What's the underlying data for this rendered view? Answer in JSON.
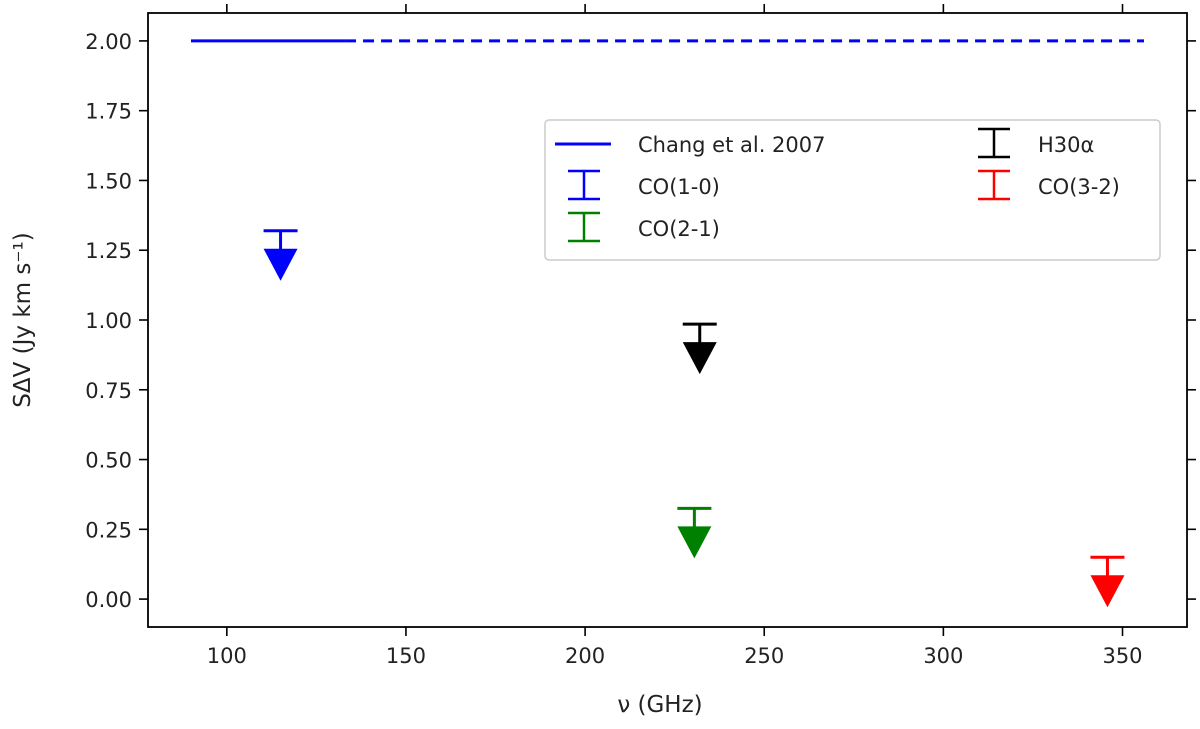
{
  "chart_data": {
    "type": "scatter",
    "title": "",
    "xlabel": "ν (GHz)",
    "ylabel": "SΔV (Jy km s⁻¹)",
    "xlim": [
      78,
      368
    ],
    "ylim": [
      -0.1,
      2.1
    ],
    "x_ticks": [
      100,
      150,
      200,
      250,
      300,
      350
    ],
    "y_ticks": [
      0.0,
      0.25,
      0.5,
      0.75,
      1.0,
      1.25,
      1.5,
      1.75,
      2.0
    ],
    "x_tick_labels": [
      "100",
      "150",
      "200",
      "250",
      "300",
      "350"
    ],
    "y_tick_labels": [
      "0.00",
      "0.25",
      "0.50",
      "0.75",
      "1.00",
      "1.25",
      "1.50",
      "1.75",
      "2.00"
    ],
    "grid": false,
    "legend_position": "upper-right",
    "reference_line": {
      "name": "Chang et al. 2007",
      "y": 2.0,
      "solid_x": [
        90,
        133
      ],
      "dashed_x": [
        133,
        356
      ],
      "color": "#0000ff"
    },
    "series": [
      {
        "name": "CO(1-0)",
        "color": "#0000ff",
        "x": 115,
        "y": 1.32,
        "upper_limit": true
      },
      {
        "name": "CO(2-1)",
        "color": "#008000",
        "x": 230.5,
        "y": 0.325,
        "upper_limit": true
      },
      {
        "name": "H30α",
        "color": "#000000",
        "x": 232,
        "y": 0.985,
        "upper_limit": true
      },
      {
        "name": "CO(3-2)",
        "color": "#ff0000",
        "x": 345.8,
        "y": 0.15,
        "upper_limit": true
      }
    ],
    "legend_columns": [
      [
        "Chang et al. 2007",
        "CO(1-0)",
        "CO(2-1)"
      ],
      [
        "H30α",
        "CO(3-2)"
      ]
    ]
  }
}
